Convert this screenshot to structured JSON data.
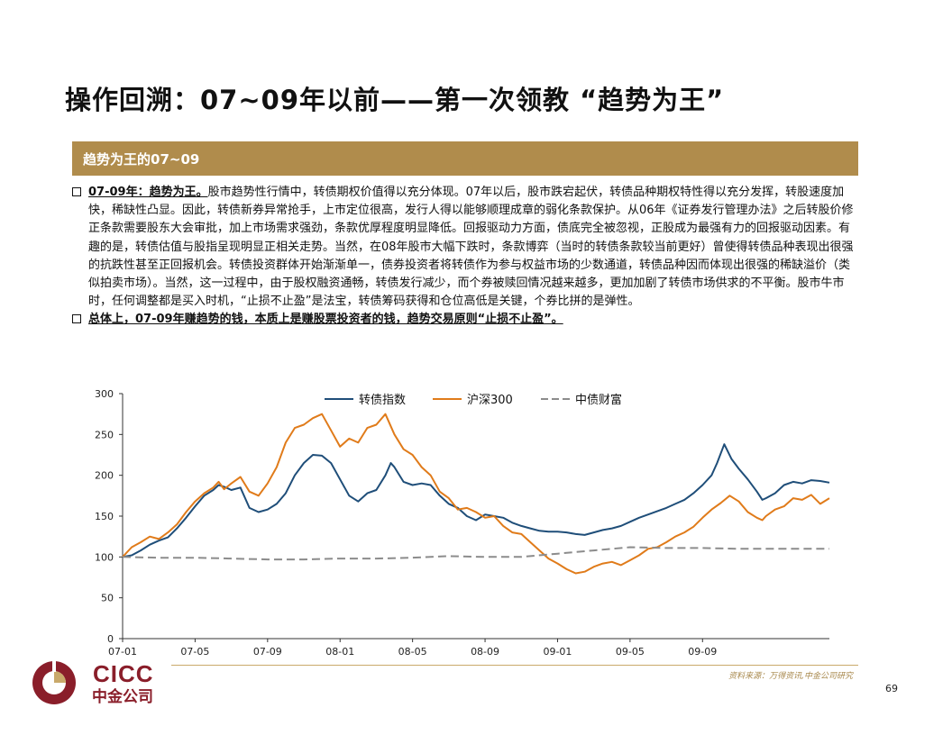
{
  "title": "操作回溯：07~09年以前——第一次领教 “趋势为王”",
  "banner": "趋势为王的07~09",
  "bullets": [
    {
      "lead": "07-09年：趋势为王。",
      "text": "股市趋势性行情中，转债期权价值得以充分体现。07年以后，股市跌宕起伏，转债品种期权特性得以充分发挥，转股速度加快，稀缺性凸显。因此，转债新券异常抢手，上市定位很高，发行人得以能够顺理成章的弱化条款保护。从06年《证券发行管理办法》之后转股价修正条款需要股东大会审批，加上市场需求强劲，条款优厚程度明显降低。回报驱动力方面，债底完全被忽视，正股成为最强有力的回报驱动因素。有趣的是，转债估值与股指呈现明显正相关走势。当然，在08年股市大幅下跌时，条款博弈（当时的转债条款较当前更好）曾使得转债品种表现出很强的抗跌性甚至正回报机会。转债投资群体开始渐渐单一，债券投资者将转债作为参与权益市场的少数通道，转债品种因而体现出很强的稀缺溢价（类似拍卖市场）。当然，这一过程中，由于股权融资通畅，转债发行减少，而个券被赎回情况越来越多，更加加剧了转债市场供求的不平衡。股市牛市时，任何调整都是买入时机，“止损不止盈”是法宝，转债筹码获得和仓位高低是关键，个券比拼的是弹性。"
    },
    {
      "lead": "总体上，07-09年赚趋势的钱，本质上是赚股票投资者的钱，趋势交易原则“止损不止盈”。",
      "text": ""
    }
  ],
  "footer": {
    "logo_en": "CICC",
    "logo_cn": "中金公司",
    "source": "资料来源：万得资讯,中金公司研究",
    "page": "69"
  },
  "colors": {
    "banner": "#b08c4c",
    "logo": "#8a1e2a",
    "series_convertible": "#1f4e79",
    "series_hs300": "#e07b1a",
    "series_chinabond": "#8c8c8c"
  },
  "chart_data": {
    "type": "line",
    "x_ticks": [
      "07-01",
      "07-05",
      "07-09",
      "08-01",
      "08-05",
      "08-09",
      "09-01",
      "09-05",
      "09-09"
    ],
    "x_months_span": 35.5,
    "ylim": [
      0,
      300
    ],
    "y_ticks": [
      0,
      50,
      100,
      150,
      200,
      250,
      300
    ],
    "legend_position": "top-center",
    "grid": false,
    "series": [
      {
        "name": "转债指数",
        "style": "solid",
        "points": [
          [
            0,
            100
          ],
          [
            0.5,
            102
          ],
          [
            1,
            108
          ],
          [
            1.5,
            115
          ],
          [
            2,
            120
          ],
          [
            2.5,
            124
          ],
          [
            3,
            135
          ],
          [
            3.5,
            148
          ],
          [
            4,
            162
          ],
          [
            4.5,
            175
          ],
          [
            5,
            182
          ],
          [
            5.3,
            188
          ],
          [
            5.6,
            186
          ],
          [
            6,
            182
          ],
          [
            6.5,
            185
          ],
          [
            7,
            160
          ],
          [
            7.5,
            155
          ],
          [
            8,
            158
          ],
          [
            8.5,
            165
          ],
          [
            9,
            178
          ],
          [
            9.5,
            200
          ],
          [
            10,
            215
          ],
          [
            10.5,
            225
          ],
          [
            11,
            224
          ],
          [
            11.5,
            215
          ],
          [
            12,
            195
          ],
          [
            12.5,
            175
          ],
          [
            13,
            168
          ],
          [
            13.5,
            178
          ],
          [
            14,
            182
          ],
          [
            14.5,
            200
          ],
          [
            14.8,
            215
          ],
          [
            15,
            210
          ],
          [
            15.5,
            192
          ],
          [
            16,
            188
          ],
          [
            16.5,
            190
          ],
          [
            17,
            188
          ],
          [
            17.5,
            175
          ],
          [
            18,
            165
          ],
          [
            18.5,
            160
          ],
          [
            19,
            150
          ],
          [
            19.5,
            145
          ],
          [
            20,
            152
          ],
          [
            20.5,
            150
          ],
          [
            21,
            148
          ],
          [
            21.5,
            142
          ],
          [
            22,
            138
          ],
          [
            22.5,
            135
          ],
          [
            23,
            132
          ],
          [
            23.5,
            131
          ],
          [
            24,
            131
          ],
          [
            24.5,
            130
          ],
          [
            25,
            128
          ],
          [
            25.5,
            127
          ],
          [
            26,
            130
          ],
          [
            26.5,
            133
          ],
          [
            27,
            135
          ],
          [
            27.5,
            138
          ],
          [
            28,
            143
          ],
          [
            28.5,
            148
          ],
          [
            29,
            152
          ],
          [
            29.5,
            156
          ],
          [
            30,
            160
          ],
          [
            30.5,
            165
          ],
          [
            31,
            170
          ],
          [
            31.5,
            178
          ],
          [
            32,
            188
          ],
          [
            32.5,
            200
          ],
          [
            32.8,
            215
          ],
          [
            33.2,
            238
          ],
          [
            33.6,
            220
          ],
          [
            34,
            208
          ],
          [
            34.5,
            195
          ],
          [
            35,
            180
          ],
          [
            35.3,
            170
          ],
          [
            35.5,
            172
          ],
          [
            36,
            178
          ],
          [
            36.5,
            188
          ],
          [
            37,
            192
          ],
          [
            37.5,
            190
          ],
          [
            38,
            194
          ],
          [
            38.5,
            193
          ],
          [
            39,
            191
          ]
        ]
      },
      {
        "name": "沪深300",
        "style": "solid",
        "points": [
          [
            0,
            100
          ],
          [
            0.5,
            112
          ],
          [
            1,
            118
          ],
          [
            1.5,
            125
          ],
          [
            2,
            122
          ],
          [
            2.5,
            130
          ],
          [
            3,
            140
          ],
          [
            3.5,
            155
          ],
          [
            4,
            168
          ],
          [
            4.5,
            178
          ],
          [
            5,
            185
          ],
          [
            5.3,
            192
          ],
          [
            5.6,
            183
          ],
          [
            6,
            190
          ],
          [
            6.5,
            198
          ],
          [
            7,
            180
          ],
          [
            7.5,
            175
          ],
          [
            8,
            190
          ],
          [
            8.5,
            210
          ],
          [
            9,
            240
          ],
          [
            9.5,
            258
          ],
          [
            10,
            262
          ],
          [
            10.5,
            270
          ],
          [
            11,
            275
          ],
          [
            11.5,
            255
          ],
          [
            12,
            235
          ],
          [
            12.5,
            245
          ],
          [
            13,
            240
          ],
          [
            13.5,
            258
          ],
          [
            14,
            262
          ],
          [
            14.5,
            275
          ],
          [
            15,
            250
          ],
          [
            15.5,
            232
          ],
          [
            16,
            225
          ],
          [
            16.5,
            210
          ],
          [
            17,
            200
          ],
          [
            17.5,
            180
          ],
          [
            18,
            172
          ],
          [
            18.5,
            158
          ],
          [
            19,
            160
          ],
          [
            19.5,
            155
          ],
          [
            20,
            148
          ],
          [
            20.5,
            150
          ],
          [
            21,
            138
          ],
          [
            21.5,
            130
          ],
          [
            22,
            128
          ],
          [
            22.5,
            118
          ],
          [
            23,
            108
          ],
          [
            23.5,
            98
          ],
          [
            24,
            92
          ],
          [
            24.5,
            85
          ],
          [
            25,
            80
          ],
          [
            25.5,
            82
          ],
          [
            26,
            88
          ],
          [
            26.5,
            92
          ],
          [
            27,
            94
          ],
          [
            27.5,
            90
          ],
          [
            28,
            96
          ],
          [
            28.5,
            102
          ],
          [
            29,
            110
          ],
          [
            29.5,
            112
          ],
          [
            30,
            118
          ],
          [
            30.5,
            125
          ],
          [
            31,
            130
          ],
          [
            31.5,
            137
          ],
          [
            32,
            148
          ],
          [
            32.5,
            158
          ],
          [
            33,
            166
          ],
          [
            33.5,
            175
          ],
          [
            34,
            168
          ],
          [
            34.5,
            155
          ],
          [
            35,
            148
          ],
          [
            35.3,
            145
          ],
          [
            35.5,
            150
          ],
          [
            36,
            158
          ],
          [
            36.5,
            162
          ],
          [
            37,
            172
          ],
          [
            37.5,
            170
          ],
          [
            38,
            176
          ],
          [
            38.5,
            165
          ],
          [
            39,
            172
          ]
        ]
      },
      {
        "name": "中债财富",
        "style": "dashed",
        "points": [
          [
            0,
            100
          ],
          [
            2,
            99
          ],
          [
            4,
            99
          ],
          [
            6,
            98
          ],
          [
            8,
            97
          ],
          [
            10,
            97
          ],
          [
            12,
            98
          ],
          [
            14,
            98
          ],
          [
            16,
            99
          ],
          [
            18,
            101
          ],
          [
            20,
            100
          ],
          [
            22,
            100
          ],
          [
            24,
            104
          ],
          [
            26,
            108
          ],
          [
            28,
            112
          ],
          [
            30,
            111
          ],
          [
            32,
            111
          ],
          [
            34,
            110
          ],
          [
            36,
            110
          ],
          [
            39,
            110
          ]
        ]
      }
    ]
  }
}
